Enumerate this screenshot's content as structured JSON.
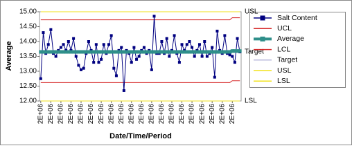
{
  "chart_data": {
    "type": "line",
    "y_axis_label": "Average",
    "x_axis_label": "Date/Time/Period",
    "annotations": [
      {
        "text": "USL",
        "y": 15
      },
      {
        "text": "Target",
        "y": 13.65
      },
      {
        "text": "LSL",
        "y": 12
      }
    ],
    "categories": [
      "2E+06",
      null,
      null,
      null,
      "2E+06",
      null,
      null,
      null,
      "2E+06",
      null,
      null,
      null,
      "2E+06",
      null,
      null,
      null,
      "2E+06",
      null,
      null,
      null,
      "2E+06",
      null,
      null,
      null,
      "2E+06",
      null,
      null,
      null,
      "2E+06",
      null,
      null,
      null,
      "2E+06",
      null,
      null,
      null,
      "2E+06",
      null,
      null,
      null,
      "2E+06",
      null,
      null,
      null,
      "2E+06",
      null,
      null,
      null,
      "2E+06",
      null,
      null,
      null,
      "2E+06",
      null,
      null,
      null,
      "2E+06",
      null,
      null,
      null,
      "2E+06",
      null,
      null,
      null,
      "2E+06",
      null,
      null,
      null,
      "2E+06",
      null,
      null,
      null,
      "2E+06",
      null,
      null,
      null,
      "2E+06",
      null,
      null,
      null
    ],
    "ylim": [
      12,
      15
    ],
    "yticks": [
      {
        "value": 12,
        "label": "12.00"
      },
      {
        "value": 12.5,
        "label": "12.50"
      },
      {
        "value": 13,
        "label": "13.00"
      },
      {
        "value": 13.5,
        "label": "13.50"
      },
      {
        "value": 14,
        "label": "14.00"
      },
      {
        "value": 14.5,
        "label": "14.50"
      },
      {
        "value": 15,
        "label": "15.00"
      }
    ],
    "legend": "right",
    "series": [
      {
        "name": "Salt Content",
        "color": "#000080",
        "line_width": 1,
        "marker": "square",
        "values": [
          12.75,
          14.3,
          13.6,
          13.9,
          14.4,
          13.6,
          13.5,
          13.7,
          13.8,
          13.9,
          13.7,
          14.0,
          13.7,
          14.1,
          13.5,
          13.2,
          13.05,
          13.1,
          13.6,
          14.0,
          13.7,
          13.3,
          13.9,
          13.3,
          13.4,
          13.9,
          13.6,
          13.9,
          14.2,
          13.1,
          12.85,
          13.7,
          13.8,
          12.35,
          13.7,
          13.6,
          13.3,
          13.8,
          13.4,
          13.5,
          13.7,
          13.8,
          13.6,
          13.7,
          13.05,
          14.85,
          13.6,
          13.6,
          14.0,
          13.6,
          14.1,
          13.5,
          13.7,
          14.2,
          13.6,
          13.3,
          13.9,
          13.7,
          13.9,
          14.0,
          13.8,
          13.5,
          13.7,
          13.9,
          13.5,
          14.0,
          13.5,
          13.6,
          13.8,
          12.8,
          14.35,
          13.7,
          13.6,
          14.2,
          13.6,
          13.55,
          13.5,
          13.3,
          14.1,
          13.65
        ]
      },
      {
        "name": "UCL",
        "color": "#d62828",
        "line_width": 1,
        "values": [
          14.73,
          14.73,
          14.73,
          14.73,
          14.73,
          14.73,
          14.73,
          14.73,
          14.73,
          14.73,
          14.73,
          14.73,
          14.73,
          14.73,
          14.73,
          14.73,
          14.73,
          14.73,
          14.73,
          14.73,
          14.73,
          14.73,
          14.73,
          14.73,
          14.73,
          14.73,
          14.73,
          14.73,
          14.73,
          14.73,
          14.73,
          14.73,
          14.73,
          14.73,
          14.73,
          14.73,
          14.73,
          14.73,
          14.73,
          14.73,
          14.73,
          14.73,
          14.73,
          14.73,
          14.73,
          14.73,
          14.73,
          14.73,
          14.73,
          14.73,
          14.73,
          14.73,
          14.73,
          14.73,
          14.73,
          14.73,
          14.73,
          14.73,
          14.73,
          14.73,
          14.73,
          14.73,
          14.73,
          14.73,
          14.73,
          14.73,
          14.73,
          14.73,
          14.73,
          14.73,
          14.73,
          14.73,
          14.73,
          14.73,
          14.73,
          14.73,
          14.8,
          14.8,
          14.8,
          14.8
        ]
      },
      {
        "name": "Average",
        "color": "#2f8f8a",
        "line_width": 5,
        "marker": "square",
        "values": [
          13.65,
          13.65,
          13.65,
          13.65,
          13.65,
          13.65,
          13.65,
          13.65,
          13.65,
          13.65,
          13.65,
          13.65,
          13.65,
          13.65,
          13.65,
          13.65,
          13.65,
          13.65,
          13.65,
          13.65,
          13.65,
          13.65,
          13.65,
          13.65,
          13.65,
          13.65,
          13.65,
          13.65,
          13.65,
          13.65,
          13.65,
          13.65,
          13.65,
          13.65,
          13.65,
          13.65,
          13.65,
          13.65,
          13.65,
          13.65,
          13.65,
          13.65,
          13.65,
          13.65,
          13.65,
          13.65,
          13.65,
          13.65,
          13.65,
          13.65,
          13.65,
          13.65,
          13.65,
          13.65,
          13.65,
          13.65,
          13.65,
          13.65,
          13.65,
          13.65,
          13.65,
          13.65,
          13.65,
          13.65,
          13.65,
          13.65,
          13.65,
          13.65,
          13.65,
          13.65,
          13.65,
          13.65,
          13.65,
          13.65,
          13.65,
          13.65,
          13.68,
          13.68,
          13.68,
          13.68
        ]
      },
      {
        "name": "LCL",
        "color": "#d62828",
        "line_width": 1,
        "values": [
          12.62,
          12.62,
          12.62,
          12.62,
          12.62,
          12.62,
          12.62,
          12.62,
          12.62,
          12.62,
          12.62,
          12.62,
          12.62,
          12.62,
          12.62,
          12.62,
          12.62,
          12.62,
          12.62,
          12.62,
          12.62,
          12.62,
          12.62,
          12.62,
          12.62,
          12.62,
          12.62,
          12.62,
          12.62,
          12.62,
          12.62,
          12.62,
          12.62,
          12.62,
          12.62,
          12.62,
          12.62,
          12.62,
          12.62,
          12.62,
          12.62,
          12.62,
          12.62,
          12.62,
          12.62,
          12.62,
          12.62,
          12.62,
          12.62,
          12.62,
          12.62,
          12.62,
          12.62,
          12.62,
          12.62,
          12.62,
          12.62,
          12.62,
          12.62,
          12.62,
          12.62,
          12.62,
          12.62,
          12.62,
          12.62,
          12.62,
          12.62,
          12.62,
          12.62,
          12.62,
          12.62,
          12.62,
          12.62,
          12.62,
          12.62,
          12.62,
          12.68,
          12.68,
          12.68,
          12.68
        ]
      },
      {
        "name": "Target",
        "color": "#b8b8dc",
        "line_width": 1,
        "values": [
          13.65,
          13.65,
          13.65,
          13.65,
          13.65,
          13.65,
          13.65,
          13.65,
          13.65,
          13.65,
          13.65,
          13.65,
          13.65,
          13.65,
          13.65,
          13.65,
          13.65,
          13.65,
          13.65,
          13.65,
          13.65,
          13.65,
          13.65,
          13.65,
          13.65,
          13.65,
          13.65,
          13.65,
          13.65,
          13.65,
          13.65,
          13.65,
          13.65,
          13.65,
          13.65,
          13.65,
          13.65,
          13.65,
          13.65,
          13.65,
          13.65,
          13.65,
          13.65,
          13.65,
          13.65,
          13.65,
          13.65,
          13.65,
          13.65,
          13.65,
          13.65,
          13.65,
          13.65,
          13.65,
          13.65,
          13.65,
          13.65,
          13.65,
          13.65,
          13.65,
          13.65,
          13.65,
          13.65,
          13.65,
          13.65,
          13.65,
          13.65,
          13.65,
          13.65,
          13.65,
          13.65,
          13.65,
          13.65,
          13.65,
          13.65,
          13.65,
          13.65,
          13.65,
          13.65,
          13.65
        ]
      },
      {
        "name": "USL",
        "color": "#f2e21a",
        "line_width": 1,
        "values": [
          15,
          15,
          15,
          15,
          15,
          15,
          15,
          15,
          15,
          15,
          15,
          15,
          15,
          15,
          15,
          15,
          15,
          15,
          15,
          15,
          15,
          15,
          15,
          15,
          15,
          15,
          15,
          15,
          15,
          15,
          15,
          15,
          15,
          15,
          15,
          15,
          15,
          15,
          15,
          15,
          15,
          15,
          15,
          15,
          15,
          15,
          15,
          15,
          15,
          15,
          15,
          15,
          15,
          15,
          15,
          15,
          15,
          15,
          15,
          15,
          15,
          15,
          15,
          15,
          15,
          15,
          15,
          15,
          15,
          15,
          15,
          15,
          15,
          15,
          15,
          15,
          15,
          15,
          15,
          15
        ]
      },
      {
        "name": "LSL",
        "color": "#f2e21a",
        "line_width": 1,
        "values": [
          12,
          12,
          12,
          12,
          12,
          12,
          12,
          12,
          12,
          12,
          12,
          12,
          12,
          12,
          12,
          12,
          12,
          12,
          12,
          12,
          12,
          12,
          12,
          12,
          12,
          12,
          12,
          12,
          12,
          12,
          12,
          12,
          12,
          12,
          12,
          12,
          12,
          12,
          12,
          12,
          12,
          12,
          12,
          12,
          12,
          12,
          12,
          12,
          12,
          12,
          12,
          12,
          12,
          12,
          12,
          12,
          12,
          12,
          12,
          12,
          12,
          12,
          12,
          12,
          12,
          12,
          12,
          12,
          12,
          12,
          12,
          12,
          12,
          12,
          12,
          12,
          12,
          12,
          12,
          12
        ]
      }
    ]
  }
}
